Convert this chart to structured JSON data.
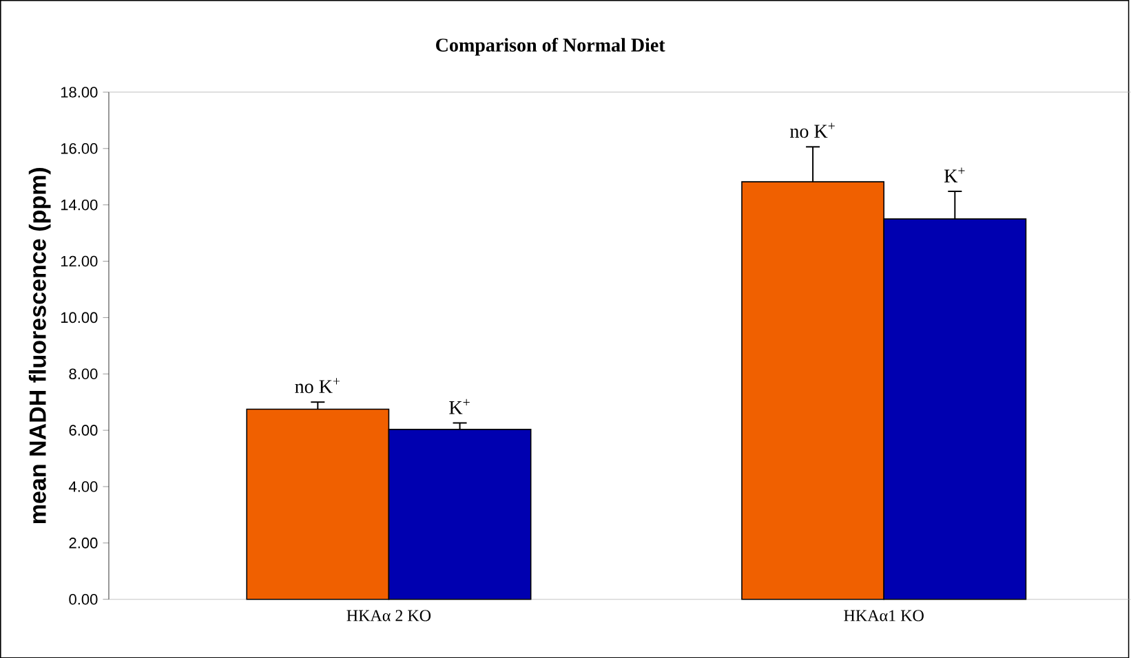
{
  "chart_data": {
    "type": "bar",
    "title": "Comparison of Normal Diet",
    "ylabel": "mean NADH fluorescence (ppm)",
    "categories": [
      "HKAα 2 KO",
      "HKAα1 KO"
    ],
    "series": [
      {
        "name": "no K$^{+}$",
        "color": "#f06000",
        "values": [
          6.75,
          14.82
        ],
        "errors": [
          0.25,
          1.24
        ]
      },
      {
        "name": "K$^{+}$",
        "color": "#0000b0",
        "values": [
          6.03,
          13.5
        ],
        "errors": [
          0.23,
          0.98
        ]
      }
    ],
    "ylim": [
      0,
      18
    ],
    "yticks": [
      {
        "value": 0,
        "label": "0.00"
      },
      {
        "value": 2,
        "label": "2.00"
      },
      {
        "value": 4,
        "label": "4.00"
      },
      {
        "value": 6,
        "label": "6.00"
      },
      {
        "value": 8,
        "label": "8.00"
      },
      {
        "value": 10,
        "label": "10.00"
      },
      {
        "value": 12,
        "label": "12.00"
      },
      {
        "value": 14,
        "label": "14.00"
      },
      {
        "value": 16,
        "label": "16.00"
      },
      {
        "value": 18,
        "label": "18.00"
      }
    ],
    "grid": false
  }
}
